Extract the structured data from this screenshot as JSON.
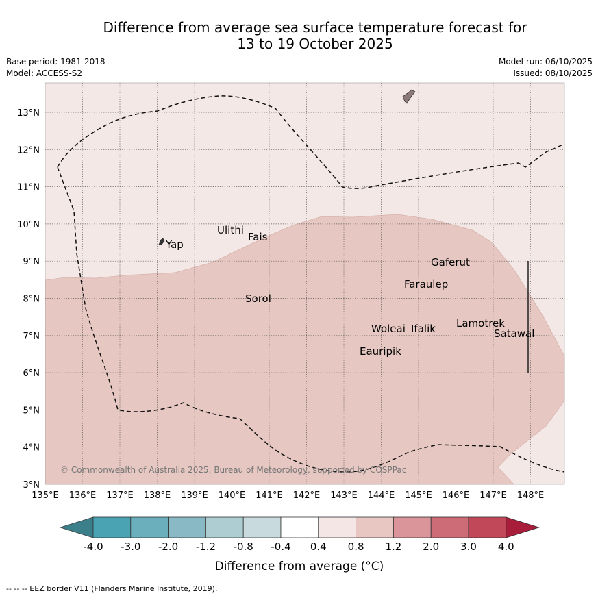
{
  "title": {
    "line1": "Difference from average sea surface temperature forecast for",
    "line2": "13 to 19 October 2025"
  },
  "meta": {
    "base_period": "Base period: 1981-2018",
    "model": "Model: ACCESS-S2",
    "model_run": "Model run: 06/10/2025",
    "issued": "Issued: 08/10/2025"
  },
  "axes": {
    "lon_labels": [
      "135°E",
      "136°E",
      "137°E",
      "138°E",
      "139°E",
      "140°E",
      "141°E",
      "142°E",
      "143°E",
      "144°E",
      "145°E",
      "146°E",
      "147°E",
      "148°E"
    ],
    "lat_labels": [
      "3°N",
      "4°N",
      "5°N",
      "6°N",
      "7°N",
      "8°N",
      "9°N",
      "10°N",
      "11°N",
      "12°N",
      "13°N"
    ]
  },
  "places": [
    {
      "name": "Yap"
    },
    {
      "name": "Ulithi"
    },
    {
      "name": "Fais"
    },
    {
      "name": "Sorol"
    },
    {
      "name": "Gaferut"
    },
    {
      "name": "Faraulep"
    },
    {
      "name": "Woleai"
    },
    {
      "name": "Ifalik"
    },
    {
      "name": "Eauripik"
    },
    {
      "name": "Lamotrek"
    },
    {
      "name": "Satawal"
    }
  ],
  "copyright": "© Commonwealth of Australia 2025, Bureau of Meteorology, supported by COSPPac",
  "colorbar": {
    "labels": [
      "-4.0",
      "-3.0",
      "-2.0",
      "-1.2",
      "-0.8",
      "-0.4",
      "0.4",
      "0.8",
      "1.2",
      "2.0",
      "3.0",
      "4.0"
    ],
    "title": "Difference from average (°C)",
    "colors": [
      "#3a7f8a",
      "#4aa3b3",
      "#6baebc",
      "#89b9c4",
      "#aecdd3",
      "#c8dadd",
      "#ffffff",
      "#f4e6e5",
      "#e8c7c2",
      "#d9959a",
      "#cd6c76",
      "#c04858",
      "#a81d3a"
    ]
  },
  "legend_footer": "--  --  -- EEZ border V11 (Flanders Marine Institute, 2019).",
  "map_colors": {
    "background": "#f4e8e6",
    "anomaly_fill": "#e6c7c1",
    "eez_line": "#111111",
    "land": "#8c7a78"
  }
}
